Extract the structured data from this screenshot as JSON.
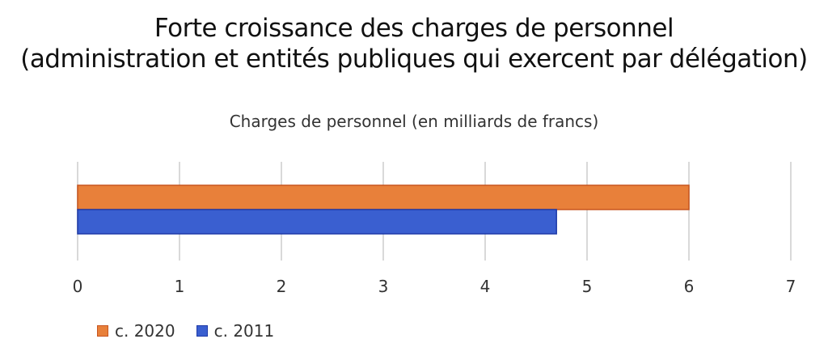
{
  "header": {
    "title_line1": "Forte croissance des charges de personnel",
    "title_line2": "(administration et entités  publiques qui exercent par délégation)"
  },
  "chart_data": {
    "type": "bar",
    "orientation": "horizontal",
    "title": "Charges de personnel (en milliards de francs)",
    "xlabel": "",
    "ylabel": "",
    "xlim": [
      0,
      7
    ],
    "xticks": [
      "0",
      "1",
      "2",
      "3",
      "4",
      "5",
      "6",
      "7"
    ],
    "grid": true,
    "legend_position": "bottom-left",
    "series": [
      {
        "name": "c. 2020",
        "value": 6.0,
        "color": "#e8803a",
        "border": "#c8551f"
      },
      {
        "name": "c. 2011",
        "value": 4.7,
        "color": "#3a5fd0",
        "border": "#1e3aa8"
      }
    ]
  }
}
